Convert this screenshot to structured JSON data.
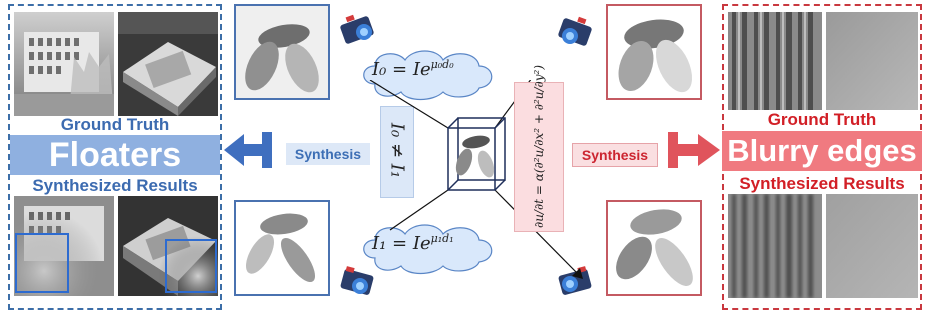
{
  "left": {
    "gt_label": "Ground Truth",
    "banner": "Floaters",
    "synth_label": "Synthesized Results",
    "synthesis_tag": "Synthesis"
  },
  "right": {
    "gt_label": "Ground Truth",
    "banner": "Blurry edges",
    "synth_label": "Synthesized Results",
    "synthesis_tag": "Synthesis"
  },
  "center": {
    "eq_top": "I₀ = Ie",
    "eq_top_sup": "μ₀d₀",
    "eq_bottom": "I₁ = Ie",
    "eq_bottom_sup": "μ₁d₁",
    "eq_neq": "I₀ ≠ I₁",
    "heat_eq_lhs": "∂u/∂t",
    "heat_eq_rhs": "= α(∂²u/∂x² + ∂²u/∂y²)"
  },
  "colors": {
    "blue_accent": "#3c6ea8",
    "red_accent": "#c9383f",
    "blue_banner": "#8fb0e0",
    "red_banner": "#f07a80"
  }
}
